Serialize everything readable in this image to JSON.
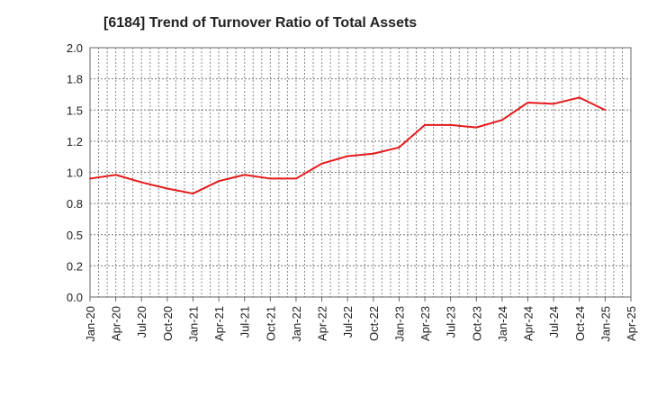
{
  "chart_data": {
    "type": "line",
    "title": "[6184]  Trend of Turnover Ratio of Total Assets",
    "xlabel": "",
    "ylabel": "",
    "ylim": [
      0,
      2.0
    ],
    "y_ticks": [
      "0.0",
      "0.2",
      "0.5",
      "0.8",
      "1.0",
      "1.2",
      "1.5",
      "1.8",
      "2.0"
    ],
    "x_ticks": [
      "Jan-20",
      "Apr-20",
      "Jul-20",
      "Oct-20",
      "Jan-21",
      "Apr-21",
      "Jul-21",
      "Oct-21",
      "Jan-22",
      "Apr-22",
      "Jul-22",
      "Oct-22",
      "Jan-23",
      "Apr-23",
      "Jul-23",
      "Oct-23",
      "Jan-24",
      "Apr-24",
      "Jul-24",
      "Oct-24",
      "Jan-25",
      "Apr-25"
    ],
    "grid": true,
    "series": [
      {
        "color": "#e31a1c",
        "x": [
          "Jan-20",
          "Apr-20",
          "Jul-20",
          "Oct-20",
          "Jan-21",
          "Apr-21",
          "Jul-21",
          "Oct-21",
          "Jan-22",
          "Apr-22",
          "Jul-22",
          "Oct-22",
          "Jan-23",
          "Apr-23",
          "Jul-23",
          "Oct-23",
          "Jan-24",
          "Apr-24",
          "Jul-24",
          "Oct-24",
          "Jan-25"
        ],
        "values": [
          0.95,
          0.98,
          0.92,
          0.87,
          0.83,
          0.93,
          0.98,
          0.95,
          0.95,
          1.07,
          1.13,
          1.15,
          1.2,
          1.38,
          1.38,
          1.36,
          1.42,
          1.56,
          1.55,
          1.6,
          1.5
        ]
      }
    ]
  }
}
